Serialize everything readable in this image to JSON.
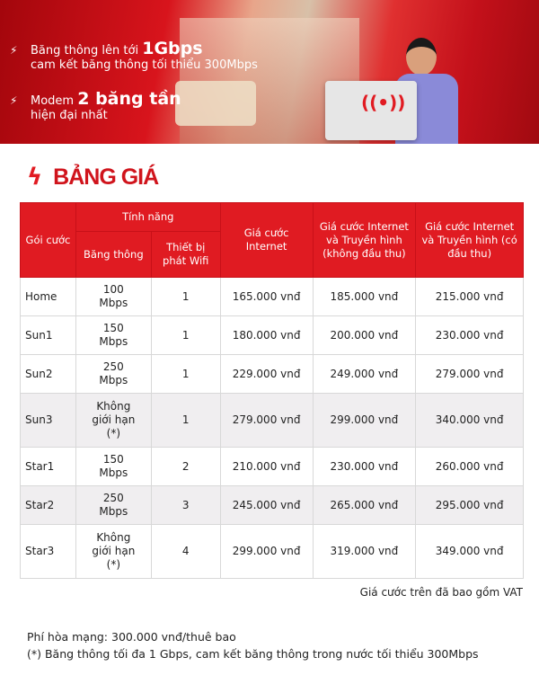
{
  "banner": {
    "line1_prefix": "Băng thông lên tới",
    "line1_big": "1Gbps",
    "line2": "cam kết băng thông tối thiểu 300Mbps",
    "line3_prefix": "Modem",
    "line3_big": "2 băng tần",
    "line4": "hiện đại nhất",
    "icons": [
      "lightning-bolt-icon",
      "wifi-icon"
    ]
  },
  "title": "BẢNG GIÁ",
  "accent": "#e01b22",
  "table": {
    "headers": {
      "package": "Gói cước",
      "features": "Tính năng",
      "bandwidth": "Băng thông",
      "wifi_device": "Thiết bị phát Wifi",
      "internet": "Giá cước Internet",
      "internet_tv_no_box": "Giá cước Internet và Truyền hình (không đầu thu)",
      "internet_tv_box": "Giá cước Internet và Truyền hình (có đầu thu)"
    },
    "rows": [
      [
        "Home",
        "100 Mbps",
        "1",
        "165.000 vnđ",
        "185.000 vnđ",
        "215.000 vnđ"
      ],
      [
        "Sun1",
        "150 Mbps",
        "1",
        "180.000 vnđ",
        "200.000 vnđ",
        "230.000 vnđ"
      ],
      [
        "Sun2",
        "250 Mbps",
        "1",
        "229.000 vnđ",
        "249.000 vnđ",
        "279.000 vnđ"
      ],
      [
        "Sun3",
        "Không giới hạn (*)",
        "1",
        "279.000 vnđ",
        "299.000 vnđ",
        "340.000 vnđ"
      ],
      [
        "Star1",
        "150 Mbps",
        "2",
        "210.000 vnđ",
        "230.000 vnđ",
        "260.000 vnđ"
      ],
      [
        "Star2",
        "250 Mbps",
        "3",
        "245.000 vnđ",
        "265.000 vnđ",
        "295.000 vnđ"
      ],
      [
        "Star3",
        "Không giới hạn (*)",
        "4",
        "299.000 vnđ",
        "319.000 vnđ",
        "349.000 vnđ"
      ]
    ]
  },
  "vat_note": "Giá cước trên đã bao gồm VAT",
  "notes": [
    "Phí hòa mạng: 300.000 vnđ/thuê bao",
    "(*) Băng thông tối đa 1 Gbps, cam kết băng thông trong nước tối thiểu 300Mbps"
  ]
}
